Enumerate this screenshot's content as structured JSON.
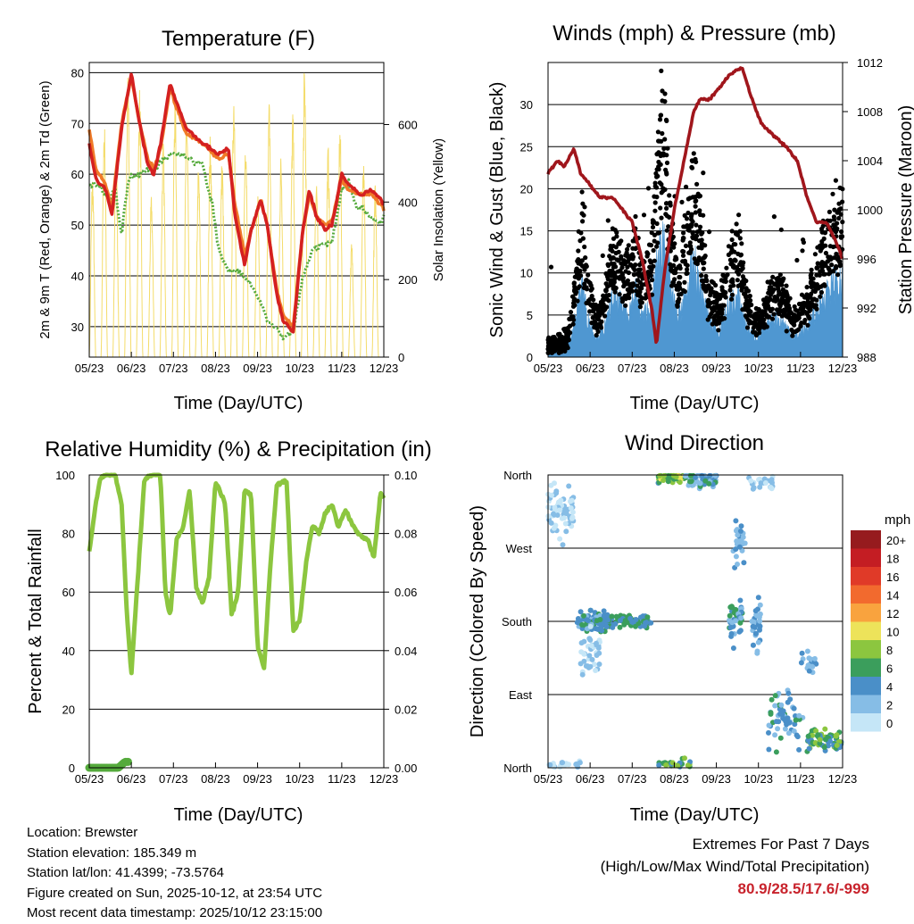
{
  "chart_data": [
    {
      "type": "line",
      "title": "Temperature (F)",
      "xlabel": "Time (Day/UTC)",
      "ylabel": "2m & 9m T (Red, Orange) & 2m Td (Green)",
      "y2label": "Solar Insolation (Yellow)",
      "categories": [
        "05/23",
        "06/23",
        "07/23",
        "08/23",
        "09/23",
        "10/23",
        "11/23",
        "12/23"
      ],
      "ylim": [
        24,
        82
      ],
      "yticks": [
        30,
        40,
        50,
        60,
        70,
        80
      ],
      "y2lim": [
        0,
        760
      ],
      "y2ticks": [
        0,
        200,
        400,
        600
      ],
      "series": [
        {
          "name": "2m T",
          "color": "#d42020",
          "values": [
            [
              0,
              66
            ],
            [
              0.2,
              59
            ],
            [
              0.5,
              57
            ],
            [
              0.7,
              52
            ],
            [
              1,
              69
            ],
            [
              1.3,
              80
            ],
            [
              1.5,
              72
            ],
            [
              1.8,
              62
            ],
            [
              2,
              60
            ],
            [
              2.2,
              66
            ],
            [
              2.5,
              78
            ],
            [
              2.7,
              74
            ],
            [
              3,
              69
            ],
            [
              3.5,
              66
            ],
            [
              4,
              64
            ],
            [
              4.3,
              65
            ],
            [
              4.5,
              52
            ],
            [
              4.8,
              42
            ],
            [
              5,
              49
            ],
            [
              5.3,
              55
            ],
            [
              5.5,
              50
            ],
            [
              5.8,
              36
            ],
            [
              6,
              31
            ],
            [
              6.3,
              29
            ],
            [
              6.6,
              49
            ],
            [
              6.8,
              57
            ],
            [
              7,
              52
            ],
            [
              7.3,
              49
            ],
            [
              7.5,
              50
            ],
            [
              7.8,
              60
            ],
            [
              8,
              58
            ],
            [
              8.4,
              56
            ],
            [
              8.7,
              57
            ],
            [
              9,
              55
            ],
            [
              9.1,
              54
            ]
          ]
        },
        {
          "name": "9m T",
          "color": "#f07a28",
          "values": [
            [
              0,
              69
            ],
            [
              0.2,
              61
            ],
            [
              0.5,
              58
            ],
            [
              0.7,
              53
            ],
            [
              1,
              70
            ],
            [
              1.3,
              79
            ],
            [
              1.5,
              72
            ],
            [
              1.8,
              63
            ],
            [
              2,
              61
            ],
            [
              2.2,
              65
            ],
            [
              2.5,
              77
            ],
            [
              2.7,
              73
            ],
            [
              3,
              68
            ],
            [
              3.5,
              66
            ],
            [
              4,
              63
            ],
            [
              4.3,
              64
            ],
            [
              4.5,
              54
            ],
            [
              4.8,
              44
            ],
            [
              5,
              49
            ],
            [
              5.3,
              55
            ],
            [
              5.5,
              50
            ],
            [
              5.8,
              37
            ],
            [
              6,
              32
            ],
            [
              6.3,
              30
            ],
            [
              6.6,
              49
            ],
            [
              6.8,
              56
            ],
            [
              7,
              52
            ],
            [
              7.3,
              50
            ],
            [
              7.5,
              51
            ],
            [
              7.8,
              59
            ],
            [
              8,
              57
            ],
            [
              8.4,
              56
            ],
            [
              8.7,
              56
            ],
            [
              9,
              54
            ],
            [
              9.1,
              53
            ]
          ]
        },
        {
          "name": "2m Td",
          "color": "#55aa3c",
          "values": [
            [
              0,
              58
            ],
            [
              0.3,
              58
            ],
            [
              0.6,
              55
            ],
            [
              0.8,
              57
            ],
            [
              1,
              48
            ],
            [
              1.2,
              59
            ],
            [
              1.5,
              60
            ],
            [
              1.8,
              61
            ],
            [
              2,
              61
            ],
            [
              2.3,
              63
            ],
            [
              2.6,
              64
            ],
            [
              2.9,
              64
            ],
            [
              3.3,
              62
            ],
            [
              3.5,
              62
            ],
            [
              3.8,
              54
            ],
            [
              4,
              45
            ],
            [
              4.3,
              41
            ],
            [
              4.6,
              41
            ],
            [
              5,
              38
            ],
            [
              5.3,
              35
            ],
            [
              5.5,
              31
            ],
            [
              5.7,
              30
            ],
            [
              6,
              28
            ],
            [
              6.3,
              29
            ],
            [
              6.6,
              40
            ],
            [
              6.9,
              45
            ],
            [
              7.2,
              46
            ],
            [
              7.5,
              47
            ],
            [
              7.8,
              57
            ],
            [
              8,
              59
            ],
            [
              8.2,
              54
            ],
            [
              8.5,
              53
            ],
            [
              8.8,
              51
            ],
            [
              9,
              50
            ],
            [
              9.1,
              52
            ]
          ]
        }
      ]
    },
    {
      "type": "scatter",
      "title": "Winds (mph) & Pressure (mb)",
      "xlabel": "Time (Day/UTC)",
      "ylabel": "Sonic Wind & Gust (Blue, Black)",
      "y2label": "Station Pressure (Maroon)",
      "categories": [
        "05/23",
        "06/23",
        "07/23",
        "08/23",
        "09/23",
        "10/23",
        "11/23",
        "12/23"
      ],
      "ylim": [
        0,
        35
      ],
      "yticks": [
        0,
        5,
        10,
        15,
        20,
        25,
        30
      ],
      "y2lim": [
        988,
        1012
      ],
      "y2ticks": [
        988,
        992,
        996,
        1000,
        1004,
        1008,
        1012
      ],
      "series": [
        {
          "name": "Station Pressure",
          "color": "#a0161c",
          "values": [
            [
              0,
              1003
            ],
            [
              0.3,
              1004
            ],
            [
              0.5,
              1003.5
            ],
            [
              0.8,
              1005
            ],
            [
              1,
              1003
            ],
            [
              1.3,
              1002
            ],
            [
              1.6,
              1001
            ],
            [
              2,
              1001
            ],
            [
              2.3,
              1000
            ],
            [
              2.6,
              999
            ],
            [
              2.9,
              996
            ],
            [
              3.2,
              992
            ],
            [
              3.35,
              989
            ],
            [
              3.6,
              995
            ],
            [
              3.9,
              1000
            ],
            [
              4.2,
              1004
            ],
            [
              4.5,
              1008
            ],
            [
              4.7,
              1009
            ],
            [
              5,
              1009
            ],
            [
              5.3,
              1010
            ],
            [
              5.6,
              1011
            ],
            [
              6,
              1011.6
            ],
            [
              6.3,
              1009
            ],
            [
              6.6,
              1007
            ],
            [
              7,
              1006
            ],
            [
              7.4,
              1005
            ],
            [
              7.7,
              1004
            ],
            [
              8,
              1001
            ],
            [
              8.3,
              999
            ],
            [
              8.6,
              999
            ],
            [
              8.8,
              998
            ],
            [
              9.1,
              996
            ]
          ]
        }
      ]
    },
    {
      "type": "line",
      "title": "Relative Humidity (%) & Precipitation (in)",
      "xlabel": "Time (Day/UTC)",
      "ylabel": "Percent & Total Rainfall",
      "categories": [
        "05/23",
        "06/23",
        "07/23",
        "08/23",
        "09/23",
        "10/23",
        "11/23",
        "12/23"
      ],
      "ylim": [
        0,
        100
      ],
      "yticks": [
        0,
        20,
        40,
        60,
        80,
        100
      ],
      "y2lim": [
        0,
        0.1
      ],
      "y2ticks": [
        "0.00",
        "0.02",
        "0.04",
        "0.06",
        "0.08",
        "0.10"
      ],
      "series": [
        {
          "name": "Relative Humidity",
          "color": "#8cc63f",
          "values": [
            [
              0,
              74
            ],
            [
              0.2,
              90
            ],
            [
              0.35,
              99
            ],
            [
              0.5,
              100
            ],
            [
              0.8,
              100
            ],
            [
              1,
              90
            ],
            [
              1.15,
              55
            ],
            [
              1.3,
              32
            ],
            [
              1.5,
              65
            ],
            [
              1.7,
              98
            ],
            [
              1.9,
              100
            ],
            [
              2.2,
              100
            ],
            [
              2.35,
              60
            ],
            [
              2.5,
              52
            ],
            [
              2.7,
              78
            ],
            [
              2.9,
              82
            ],
            [
              3.1,
              95
            ],
            [
              3.3,
              62
            ],
            [
              3.5,
              56
            ],
            [
              3.7,
              65
            ],
            [
              3.9,
              98
            ],
            [
              4.2,
              90
            ],
            [
              4.4,
              52
            ],
            [
              4.6,
              60
            ],
            [
              4.8,
              95
            ],
            [
              5,
              93
            ],
            [
              5.2,
              42
            ],
            [
              5.4,
              34
            ],
            [
              5.6,
              70
            ],
            [
              5.8,
              97
            ],
            [
              6.1,
              98
            ],
            [
              6.3,
              47
            ],
            [
              6.5,
              50
            ],
            [
              6.7,
              70
            ],
            [
              6.9,
              83
            ],
            [
              7.1,
              80
            ],
            [
              7.3,
              87
            ],
            [
              7.5,
              90
            ],
            [
              7.7,
              82
            ],
            [
              7.9,
              88
            ],
            [
              8.1,
              84
            ],
            [
              8.3,
              80
            ],
            [
              8.6,
              78
            ],
            [
              8.8,
              72
            ],
            [
              9,
              94
            ],
            [
              9.1,
              92
            ]
          ]
        },
        {
          "name": "Total Rainfall",
          "color": "#55aa3c",
          "values": [
            [
              0,
              0
            ],
            [
              0.3,
              0
            ],
            [
              0.6,
              0
            ],
            [
              0.9,
              0
            ],
            [
              1.1,
              0.002
            ],
            [
              1.2,
              0.002
            ]
          ]
        }
      ]
    },
    {
      "type": "scatter",
      "title": "Wind Direction",
      "xlabel": "Time (Day/UTC)",
      "ylabel": "Direction (Colored By Speed)",
      "categories": [
        "05/23",
        "06/23",
        "07/23",
        "08/23",
        "09/23",
        "10/23",
        "11/23",
        "12/23"
      ],
      "yticks": [
        "North",
        "East",
        "South",
        "West",
        "North"
      ],
      "ylim": [
        0,
        360
      ],
      "legend": {
        "title": "mph",
        "labels": [
          "20+",
          "18",
          "16",
          "14",
          "12",
          "10",
          "8",
          "6",
          "4",
          "2",
          "0"
        ],
        "colors": [
          "#961b1e",
          "#c41d23",
          "#e03a28",
          "#f26a2e",
          "#f9a33e",
          "#ede35a",
          "#8cc63f",
          "#3b9e5c",
          "#4a8fc8",
          "#86bde6",
          "#c5e6f7"
        ]
      }
    }
  ],
  "info": {
    "location": "Location: Brewster",
    "elevation": "Station elevation: 185.349 m",
    "latlon": "Station lat/lon: 41.4399; -73.5764",
    "created": "Figure created on Sun, 2025-10-12, at 23:54 UTC",
    "recent": "Most recent data timestamp: 2025/10/12 23:15:00"
  },
  "extremes": {
    "heading": "Extremes For Past 7 Days",
    "subheading": "(High/Low/Max Wind/Total Precipitation)",
    "values": "80.9/28.5/17.6/-999"
  }
}
